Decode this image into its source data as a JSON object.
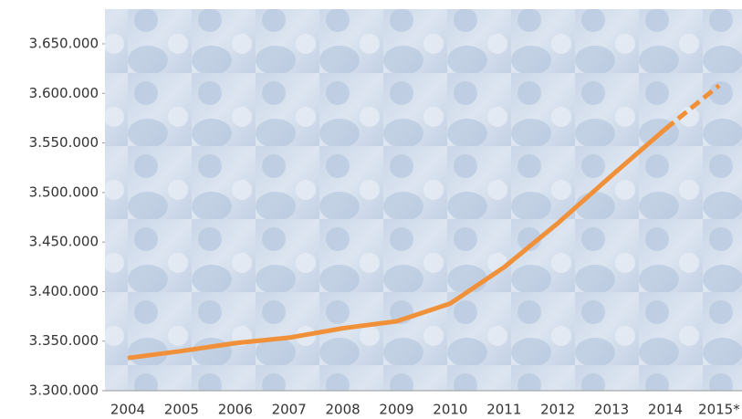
{
  "chart_data": {
    "type": "line",
    "categories": [
      "2004",
      "2005",
      "2006",
      "2007",
      "2008",
      "2009",
      "2010",
      "2011",
      "2012",
      "2013",
      "2014",
      "2015*"
    ],
    "series": [
      {
        "color": "#f0913a",
        "dashed": false,
        "values": [
          3333000,
          3340000,
          3348000,
          3353500,
          3363000,
          3370000,
          3388000,
          3424500,
          3469000,
          3517000,
          3564000,
          null
        ]
      },
      {
        "color": "#f0913a",
        "dashed": true,
        "values": [
          null,
          null,
          null,
          null,
          null,
          null,
          null,
          null,
          null,
          null,
          3564000,
          3608000
        ]
      }
    ],
    "ylim": [
      3300000,
      3685000
    ],
    "yticks": [
      {
        "value": 3300000,
        "label": "3.300.000"
      },
      {
        "value": 3350000,
        "label": "3.350.000"
      },
      {
        "value": 3400000,
        "label": "3.400.000"
      },
      {
        "value": 3450000,
        "label": "3.450.000"
      },
      {
        "value": 3500000,
        "label": "3.500.000"
      },
      {
        "value": 3550000,
        "label": "3.550.000"
      },
      {
        "value": 3600000,
        "label": "3.600.000"
      },
      {
        "value": 3650000,
        "label": "3.650.000"
      }
    ],
    "grid": false
  }
}
